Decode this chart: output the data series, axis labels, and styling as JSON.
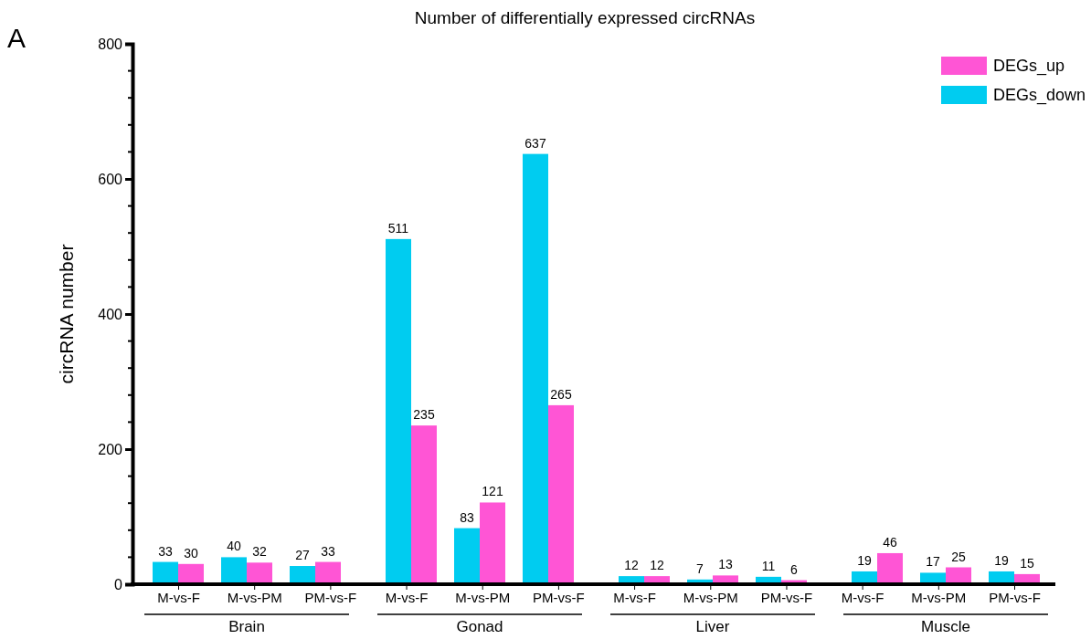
{
  "chart_data": {
    "type": "bar",
    "title": "Number of differentially expressed circRNAs",
    "ylabel": "circRNA number",
    "categories": [
      "M-vs-F",
      "M-vs-PM",
      "PM-vs-F",
      "M-vs-F",
      "M-vs-PM",
      "PM-vs-F",
      "M-vs-F",
      "M-vs-PM",
      "PM-vs-F",
      "M-vs-F",
      "M-vs-PM",
      "PM-vs-F"
    ],
    "series": [
      {
        "name": "DEGs_down",
        "color": "#00ccf0",
        "values": [
          33,
          40,
          27,
          511,
          83,
          637,
          12,
          7,
          11,
          19,
          17,
          19
        ]
      },
      {
        "name": "DEGs_up",
        "color": "#ff55d5",
        "values": [
          30,
          32,
          33,
          235,
          121,
          265,
          12,
          13,
          6,
          46,
          25,
          15
        ]
      }
    ],
    "ylim": [
      0,
      800
    ],
    "yticks": [
      0,
      200,
      400,
      600,
      800
    ],
    "grid": false,
    "legend": "top right",
    "data_labels": true,
    "annotations": [
      "A",
      "Brain",
      "Gonad",
      "Liver",
      "Muscle"
    ]
  }
}
